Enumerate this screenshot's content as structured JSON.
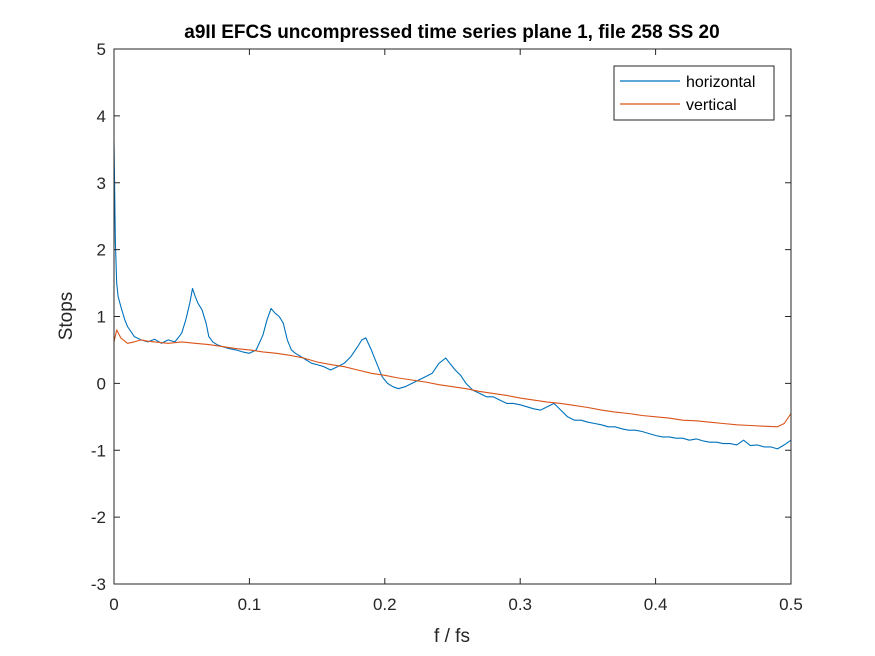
{
  "chart_data": {
    "type": "line",
    "title": "a9II EFCS uncompressed time series plane 1, file 258 SS 20",
    "xlabel": "f / fs",
    "ylabel": "Stops",
    "xlim": [
      0,
      0.5
    ],
    "ylim": [
      -3,
      5
    ],
    "xticks": [
      0,
      0.1,
      0.2,
      0.3,
      0.4,
      0.5
    ],
    "xtick_labels": [
      "0",
      "0.1",
      "0.2",
      "0.3",
      "0.4",
      "0.5"
    ],
    "yticks": [
      -3,
      -2,
      -1,
      0,
      1,
      2,
      3,
      4,
      5
    ],
    "ytick_labels": [
      "-3",
      "-2",
      "-1",
      "0",
      "1",
      "2",
      "3",
      "4",
      "5"
    ],
    "grid": false,
    "legend_position": "top-right",
    "series": [
      {
        "name": "horizontal",
        "color": "#0072BD",
        "x": [
          0,
          0.001,
          0.002,
          0.003,
          0.005,
          0.008,
          0.01,
          0.015,
          0.02,
          0.025,
          0.03,
          0.035,
          0.04,
          0.045,
          0.05,
          0.053,
          0.056,
          0.058,
          0.06,
          0.062,
          0.065,
          0.068,
          0.07,
          0.073,
          0.076,
          0.08,
          0.085,
          0.09,
          0.095,
          0.1,
          0.105,
          0.11,
          0.113,
          0.116,
          0.119,
          0.122,
          0.125,
          0.128,
          0.131,
          0.134,
          0.138,
          0.142,
          0.146,
          0.15,
          0.155,
          0.16,
          0.165,
          0.17,
          0.175,
          0.18,
          0.183,
          0.186,
          0.19,
          0.194,
          0.198,
          0.202,
          0.206,
          0.21,
          0.215,
          0.22,
          0.225,
          0.23,
          0.235,
          0.24,
          0.245,
          0.248,
          0.252,
          0.256,
          0.26,
          0.265,
          0.27,
          0.275,
          0.28,
          0.285,
          0.29,
          0.295,
          0.3,
          0.305,
          0.31,
          0.315,
          0.32,
          0.325,
          0.33,
          0.335,
          0.34,
          0.345,
          0.35,
          0.355,
          0.36,
          0.365,
          0.37,
          0.375,
          0.38,
          0.385,
          0.39,
          0.395,
          0.4,
          0.405,
          0.41,
          0.415,
          0.42,
          0.425,
          0.43,
          0.435,
          0.44,
          0.445,
          0.45,
          0.455,
          0.46,
          0.465,
          0.47,
          0.475,
          0.48,
          0.485,
          0.49,
          0.495,
          0.5
        ],
        "y": [
          3.6,
          2.1,
          1.5,
          1.3,
          1.15,
          0.95,
          0.85,
          0.7,
          0.65,
          0.62,
          0.66,
          0.6,
          0.65,
          0.62,
          0.75,
          0.95,
          1.2,
          1.42,
          1.3,
          1.2,
          1.1,
          0.9,
          0.7,
          0.62,
          0.58,
          0.55,
          0.52,
          0.5,
          0.47,
          0.45,
          0.5,
          0.72,
          0.95,
          1.12,
          1.05,
          1.0,
          0.9,
          0.65,
          0.5,
          0.45,
          0.4,
          0.35,
          0.3,
          0.28,
          0.25,
          0.2,
          0.25,
          0.3,
          0.4,
          0.55,
          0.65,
          0.68,
          0.5,
          0.3,
          0.1,
          0.0,
          -0.05,
          -0.08,
          -0.05,
          0.0,
          0.05,
          0.1,
          0.15,
          0.3,
          0.38,
          0.3,
          0.2,
          0.12,
          0.0,
          -0.1,
          -0.15,
          -0.2,
          -0.2,
          -0.25,
          -0.3,
          -0.3,
          -0.32,
          -0.35,
          -0.38,
          -0.4,
          -0.35,
          -0.3,
          -0.4,
          -0.5,
          -0.55,
          -0.55,
          -0.58,
          -0.6,
          -0.62,
          -0.65,
          -0.65,
          -0.68,
          -0.7,
          -0.7,
          -0.72,
          -0.75,
          -0.78,
          -0.8,
          -0.8,
          -0.82,
          -0.82,
          -0.85,
          -0.83,
          -0.86,
          -0.88,
          -0.88,
          -0.9,
          -0.9,
          -0.92,
          -0.85,
          -0.93,
          -0.92,
          -0.95,
          -0.95,
          -0.98,
          -0.92,
          -0.85
        ]
      },
      {
        "name": "vertical",
        "color": "#D95319",
        "x": [
          0,
          0.002,
          0.005,
          0.01,
          0.015,
          0.02,
          0.025,
          0.03,
          0.04,
          0.05,
          0.06,
          0.07,
          0.08,
          0.09,
          0.1,
          0.11,
          0.12,
          0.13,
          0.14,
          0.15,
          0.16,
          0.17,
          0.18,
          0.19,
          0.2,
          0.21,
          0.22,
          0.23,
          0.24,
          0.25,
          0.26,
          0.27,
          0.28,
          0.29,
          0.3,
          0.31,
          0.32,
          0.33,
          0.34,
          0.35,
          0.36,
          0.37,
          0.38,
          0.39,
          0.4,
          0.41,
          0.42,
          0.43,
          0.44,
          0.45,
          0.46,
          0.47,
          0.48,
          0.49,
          0.495,
          0.5
        ],
        "y": [
          0.62,
          0.8,
          0.68,
          0.6,
          0.62,
          0.65,
          0.63,
          0.62,
          0.6,
          0.62,
          0.6,
          0.58,
          0.55,
          0.52,
          0.5,
          0.47,
          0.45,
          0.42,
          0.38,
          0.32,
          0.28,
          0.25,
          0.2,
          0.15,
          0.12,
          0.08,
          0.05,
          0.02,
          -0.02,
          -0.05,
          -0.08,
          -0.12,
          -0.15,
          -0.18,
          -0.22,
          -0.25,
          -0.28,
          -0.3,
          -0.33,
          -0.36,
          -0.4,
          -0.43,
          -0.45,
          -0.48,
          -0.5,
          -0.52,
          -0.55,
          -0.56,
          -0.58,
          -0.6,
          -0.62,
          -0.63,
          -0.64,
          -0.65,
          -0.6,
          -0.45
        ]
      }
    ]
  }
}
